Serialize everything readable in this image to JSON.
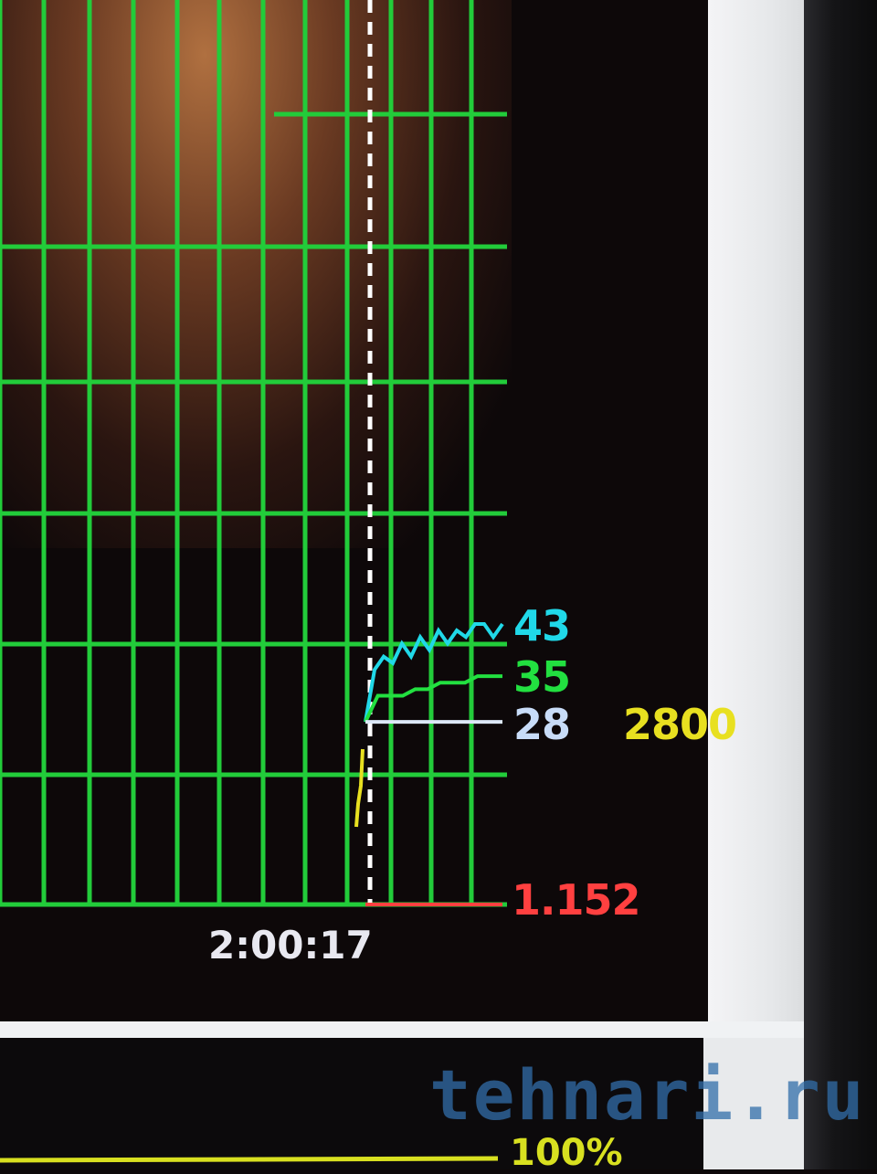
{
  "chart_data": {
    "type": "line",
    "title": "",
    "xlabel": "",
    "ylabel": "",
    "x_tick_labels": [
      "2:00:17"
    ],
    "grid": true,
    "colors": {
      "grid": "#22cc3a",
      "background": "#0d0809"
    },
    "series": [
      {
        "color": "#20d8e8",
        "current_label": "43",
        "values": [
          28,
          36,
          38,
          37,
          40,
          38,
          41,
          39,
          42,
          40,
          42,
          41,
          43,
          43,
          41,
          43
        ]
      },
      {
        "color": "#22e040",
        "current_label": "35",
        "values": [
          28,
          32,
          32,
          32,
          33,
          33,
          34,
          34,
          34,
          35,
          35,
          35
        ]
      },
      {
        "color": "#dde8f8",
        "current_label": "28",
        "values": [
          28,
          28,
          28,
          28,
          28,
          28
        ]
      },
      {
        "color": "#e8e020",
        "current_label": "2800",
        "values": []
      },
      {
        "color": "#ff4040",
        "current_label": "1.152",
        "values": [
          0,
          0,
          0,
          0
        ]
      }
    ]
  },
  "footer": {
    "progress_label": "100%"
  },
  "watermark": "tehnari.ru"
}
